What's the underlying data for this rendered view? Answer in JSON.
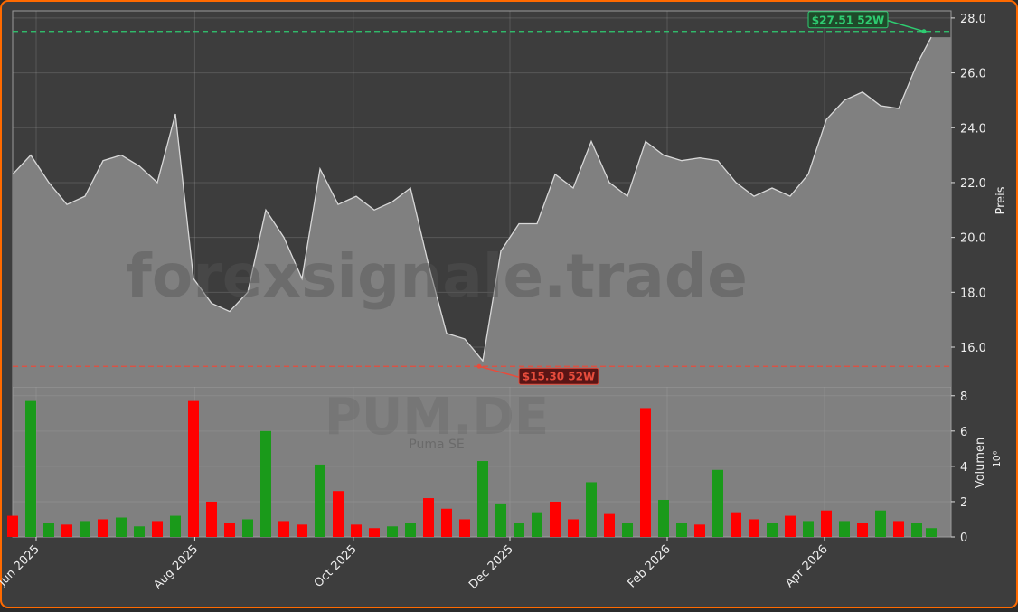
{
  "chart_data": [
    {
      "type": "area",
      "title": "forexsignale.trade",
      "ylabel": "Preis",
      "line_color": "#d8d8d8",
      "fill_color": "#808080",
      "x": [
        0,
        1,
        2,
        3,
        4,
        5,
        6,
        7,
        8,
        9,
        10,
        11,
        12,
        13,
        14,
        15,
        16,
        17,
        18,
        19,
        20,
        21,
        22,
        23,
        24,
        25,
        26,
        27,
        28,
        29,
        30,
        31,
        32,
        33,
        34,
        35,
        36,
        37,
        38,
        39,
        40,
        41,
        42,
        43,
        44,
        45,
        46,
        47,
        48,
        49,
        50,
        50.8
      ],
      "values": [
        22.3,
        23.0,
        22.0,
        21.2,
        21.5,
        22.8,
        23.0,
        22.6,
        22.0,
        24.5,
        18.5,
        17.6,
        17.3,
        18.0,
        21.0,
        20.0,
        18.5,
        22.5,
        21.2,
        21.5,
        21.0,
        21.3,
        21.8,
        19.0,
        16.5,
        16.3,
        15.5,
        19.5,
        20.5,
        20.5,
        22.3,
        21.8,
        23.5,
        22.0,
        21.5,
        23.5,
        23.0,
        22.8,
        22.9,
        22.8,
        22.0,
        21.5,
        21.8,
        21.5,
        22.3,
        24.3,
        25.0,
        25.3,
        24.8,
        24.7,
        26.3,
        27.3
      ],
      "xlim": [
        0,
        51.9
      ],
      "ylim": [
        14.55,
        28.26
      ],
      "yticks": [
        {
          "value": 16,
          "label": "16.0"
        },
        {
          "value": 18,
          "label": "18.0"
        },
        {
          "value": 20,
          "label": "20.0"
        },
        {
          "value": 22,
          "label": "22.0"
        },
        {
          "value": 24,
          "label": "24.0"
        },
        {
          "value": 26,
          "label": "26.0"
        },
        {
          "value": 28,
          "label": "28.0"
        }
      ],
      "hlines": [
        {
          "value": 27.51,
          "label": "$27.51 52W",
          "x": 50.4,
          "color": "#2ecc71"
        },
        {
          "value": 15.3,
          "label": "$15.30 52W",
          "x": 25.8,
          "color": "#e74c3c"
        }
      ],
      "grid": true
    },
    {
      "type": "bar",
      "title": "PUM.DE",
      "subtitle": "Puma SE",
      "ylabel": "Volumen",
      "offset_label": "10⁶",
      "x": [
        0,
        1,
        2,
        3,
        4,
        5,
        6,
        7,
        8,
        9,
        10,
        11,
        12,
        13,
        14,
        15,
        16,
        17,
        18,
        19,
        20,
        21,
        22,
        23,
        24,
        25,
        26,
        27,
        28,
        29,
        30,
        31,
        32,
        33,
        34,
        35,
        36,
        37,
        38,
        39,
        40,
        41,
        42,
        43,
        44,
        45,
        46,
        47,
        48,
        49,
        50,
        50.8
      ],
      "values": [
        1.2,
        7.7,
        0.8,
        0.7,
        0.9,
        1.0,
        1.1,
        0.6,
        0.9,
        1.2,
        7.7,
        2.0,
        0.8,
        1.0,
        6.0,
        0.9,
        0.7,
        4.1,
        2.6,
        0.7,
        0.5,
        0.6,
        0.8,
        2.2,
        1.6,
        1.0,
        4.3,
        1.9,
        0.8,
        1.4,
        2.0,
        1.0,
        3.1,
        1.3,
        0.8,
        7.3,
        2.1,
        0.8,
        0.7,
        3.8,
        1.4,
        1.0,
        0.8,
        1.2,
        0.9,
        1.5,
        0.9,
        0.8,
        1.5,
        0.9,
        0.8,
        0.5
      ],
      "colors": [
        "#ff0000",
        "#1a9a1a",
        "#1a9a1a",
        "#ff0000",
        "#1a9a1a",
        "#ff0000",
        "#1a9a1a",
        "#1a9a1a",
        "#ff0000",
        "#1a9a1a",
        "#ff0000",
        "#ff0000",
        "#ff0000",
        "#1a9a1a",
        "#1a9a1a",
        "#ff0000",
        "#ff0000",
        "#1a9a1a",
        "#ff0000",
        "#ff0000",
        "#ff0000",
        "#1a9a1a",
        "#1a9a1a",
        "#ff0000",
        "#ff0000",
        "#ff0000",
        "#1a9a1a",
        "#1a9a1a",
        "#1a9a1a",
        "#1a9a1a",
        "#ff0000",
        "#ff0000",
        "#1a9a1a",
        "#ff0000",
        "#1a9a1a",
        "#ff0000",
        "#1a9a1a",
        "#1a9a1a",
        "#ff0000",
        "#1a9a1a",
        "#ff0000",
        "#ff0000",
        "#1a9a1a",
        "#ff0000",
        "#1a9a1a",
        "#ff0000",
        "#1a9a1a",
        "#ff0000",
        "#1a9a1a",
        "#ff0000",
        "#1a9a1a",
        "#1a9a1a"
      ],
      "xlim": [
        0,
        51.9
      ],
      "ylim": [
        0,
        8.5
      ],
      "yticks": [
        0,
        2,
        4,
        6,
        8
      ],
      "xticks": [
        {
          "value": 1.3,
          "label": "Jun 2025"
        },
        {
          "value": 10.07,
          "label": "Aug 2025"
        },
        {
          "value": 18.84,
          "label": "Oct 2025"
        },
        {
          "value": 27.5,
          "label": "Dec 2025"
        },
        {
          "value": 36.2,
          "label": "Feb 2026"
        },
        {
          "value": 44.9,
          "label": "Apr 2026"
        }
      ],
      "grid": true
    }
  ]
}
